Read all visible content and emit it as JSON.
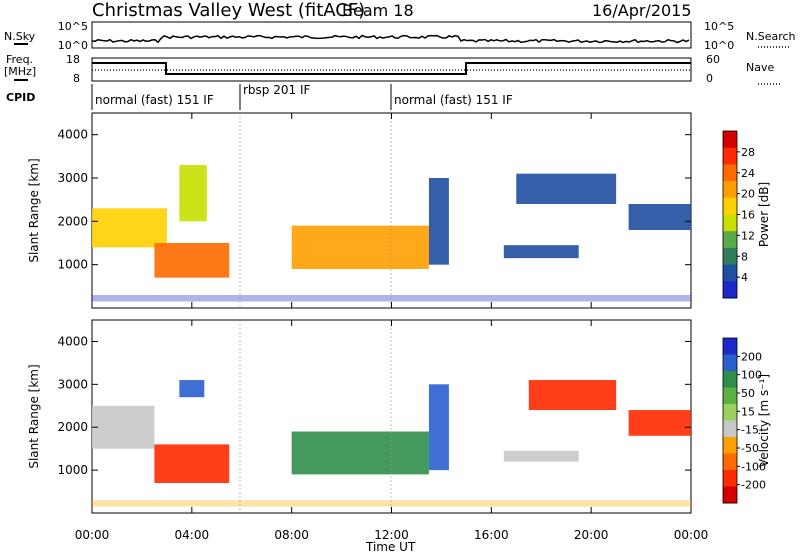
{
  "header": {
    "title": "Christmas Valley West (fitACF)",
    "beam": "Beam 18",
    "date": "16/Apr/2015"
  },
  "strip": {
    "nsky_label": "N.Sky",
    "nsky_ticks": [
      "10^5",
      "10^0"
    ],
    "nsearch_label": "N.Search",
    "nsearch_ticks": [
      "10^5",
      "10^0"
    ],
    "freq_label_1": "Freq.",
    "freq_label_2": "[MHz]",
    "freq_ticks": [
      "18",
      "8"
    ],
    "nave_label": "Nave",
    "nave_ticks": [
      "60",
      "0"
    ],
    "cpid_label": "CPID",
    "modes": [
      "normal (fast) 151 IF",
      "rbsp 201 IF",
      "normal (fast) 151 IF"
    ]
  },
  "chart_data": [
    {
      "type": "heatmap",
      "title": "",
      "xlabel": "Time UT",
      "ylabel": "Slant Range [km]",
      "x_ticks": [
        "00:00",
        "04:00",
        "08:00",
        "12:00",
        "16:00",
        "20:00",
        "00:00"
      ],
      "y_ticks": [
        "1000",
        "2000",
        "3000",
        "4000"
      ],
      "ylim": [
        0,
        4500
      ],
      "colorbar": {
        "label": "Power [dB]",
        "ticks": [
          "28",
          "24",
          "20",
          "16",
          "12",
          "8",
          "4"
        ],
        "colors": [
          "#d40000",
          "#ff2a00",
          "#ff6a00",
          "#ff9e00",
          "#ffd000",
          "#c8e000",
          "#5aaa4a",
          "#2f7f5a",
          "#1f4fa0",
          "#1e28c8"
        ]
      },
      "regions": [
        {
          "t0": 0.0,
          "t1": 3.0,
          "r0": 1400,
          "r1": 2300,
          "level": 18
        },
        {
          "t0": 2.5,
          "t1": 5.5,
          "r0": 700,
          "r1": 1500,
          "level": 24
        },
        {
          "t0": 3.5,
          "t1": 4.6,
          "r0": 2000,
          "r1": 3300,
          "level": 16
        },
        {
          "t0": 8.0,
          "t1": 13.5,
          "r0": 900,
          "r1": 1900,
          "level": 20
        },
        {
          "t0": 13.5,
          "t1": 14.3,
          "r0": 1000,
          "r1": 3000,
          "level": 8
        },
        {
          "t0": 16.5,
          "t1": 19.5,
          "r0": 1150,
          "r1": 1450,
          "level": 6
        },
        {
          "t0": 17.0,
          "t1": 21.0,
          "r0": 2400,
          "r1": 3100,
          "level": 6
        },
        {
          "t0": 21.5,
          "t1": 24.0,
          "r0": 1800,
          "r1": 2400,
          "level": 8
        }
      ]
    },
    {
      "type": "heatmap",
      "title": "",
      "xlabel": "Time UT",
      "ylabel": "Slant Range [km]",
      "x_ticks": [
        "00:00",
        "04:00",
        "08:00",
        "12:00",
        "16:00",
        "20:00",
        "00:00"
      ],
      "y_ticks": [
        "1000",
        "2000",
        "3000",
        "4000"
      ],
      "ylim": [
        0,
        4500
      ],
      "colorbar": {
        "label": "Velocity [m s⁻¹]",
        "ticks": [
          "200",
          "100",
          "50",
          "15",
          "-15",
          "-50",
          "-100",
          "-200"
        ],
        "colors": [
          "#1e28c8",
          "#2a5fd0",
          "#2f8f4a",
          "#5ab040",
          "#9ad060",
          "#c8c8c8",
          "#ffa000",
          "#ff6a00",
          "#ff2a00",
          "#d40000"
        ]
      },
      "regions": [
        {
          "t0": 0.0,
          "t1": 2.5,
          "r0": 1500,
          "r1": 2500,
          "level": 0
        },
        {
          "t0": 2.5,
          "t1": 5.5,
          "r0": 700,
          "r1": 1600,
          "level": -150
        },
        {
          "t0": 3.5,
          "t1": 4.5,
          "r0": 2700,
          "r1": 3100,
          "level": 150
        },
        {
          "t0": 8.0,
          "t1": 13.5,
          "r0": 900,
          "r1": 1900,
          "level": 120
        },
        {
          "t0": 13.5,
          "t1": 14.3,
          "r0": 1000,
          "r1": 3000,
          "level": 150
        },
        {
          "t0": 16.5,
          "t1": 19.5,
          "r0": 1200,
          "r1": 1450,
          "level": 0
        },
        {
          "t0": 17.5,
          "t1": 21.0,
          "r0": 2400,
          "r1": 3100,
          "level": -150
        },
        {
          "t0": 21.5,
          "t1": 24.0,
          "r0": 1800,
          "r1": 2400,
          "level": -150
        }
      ]
    }
  ]
}
